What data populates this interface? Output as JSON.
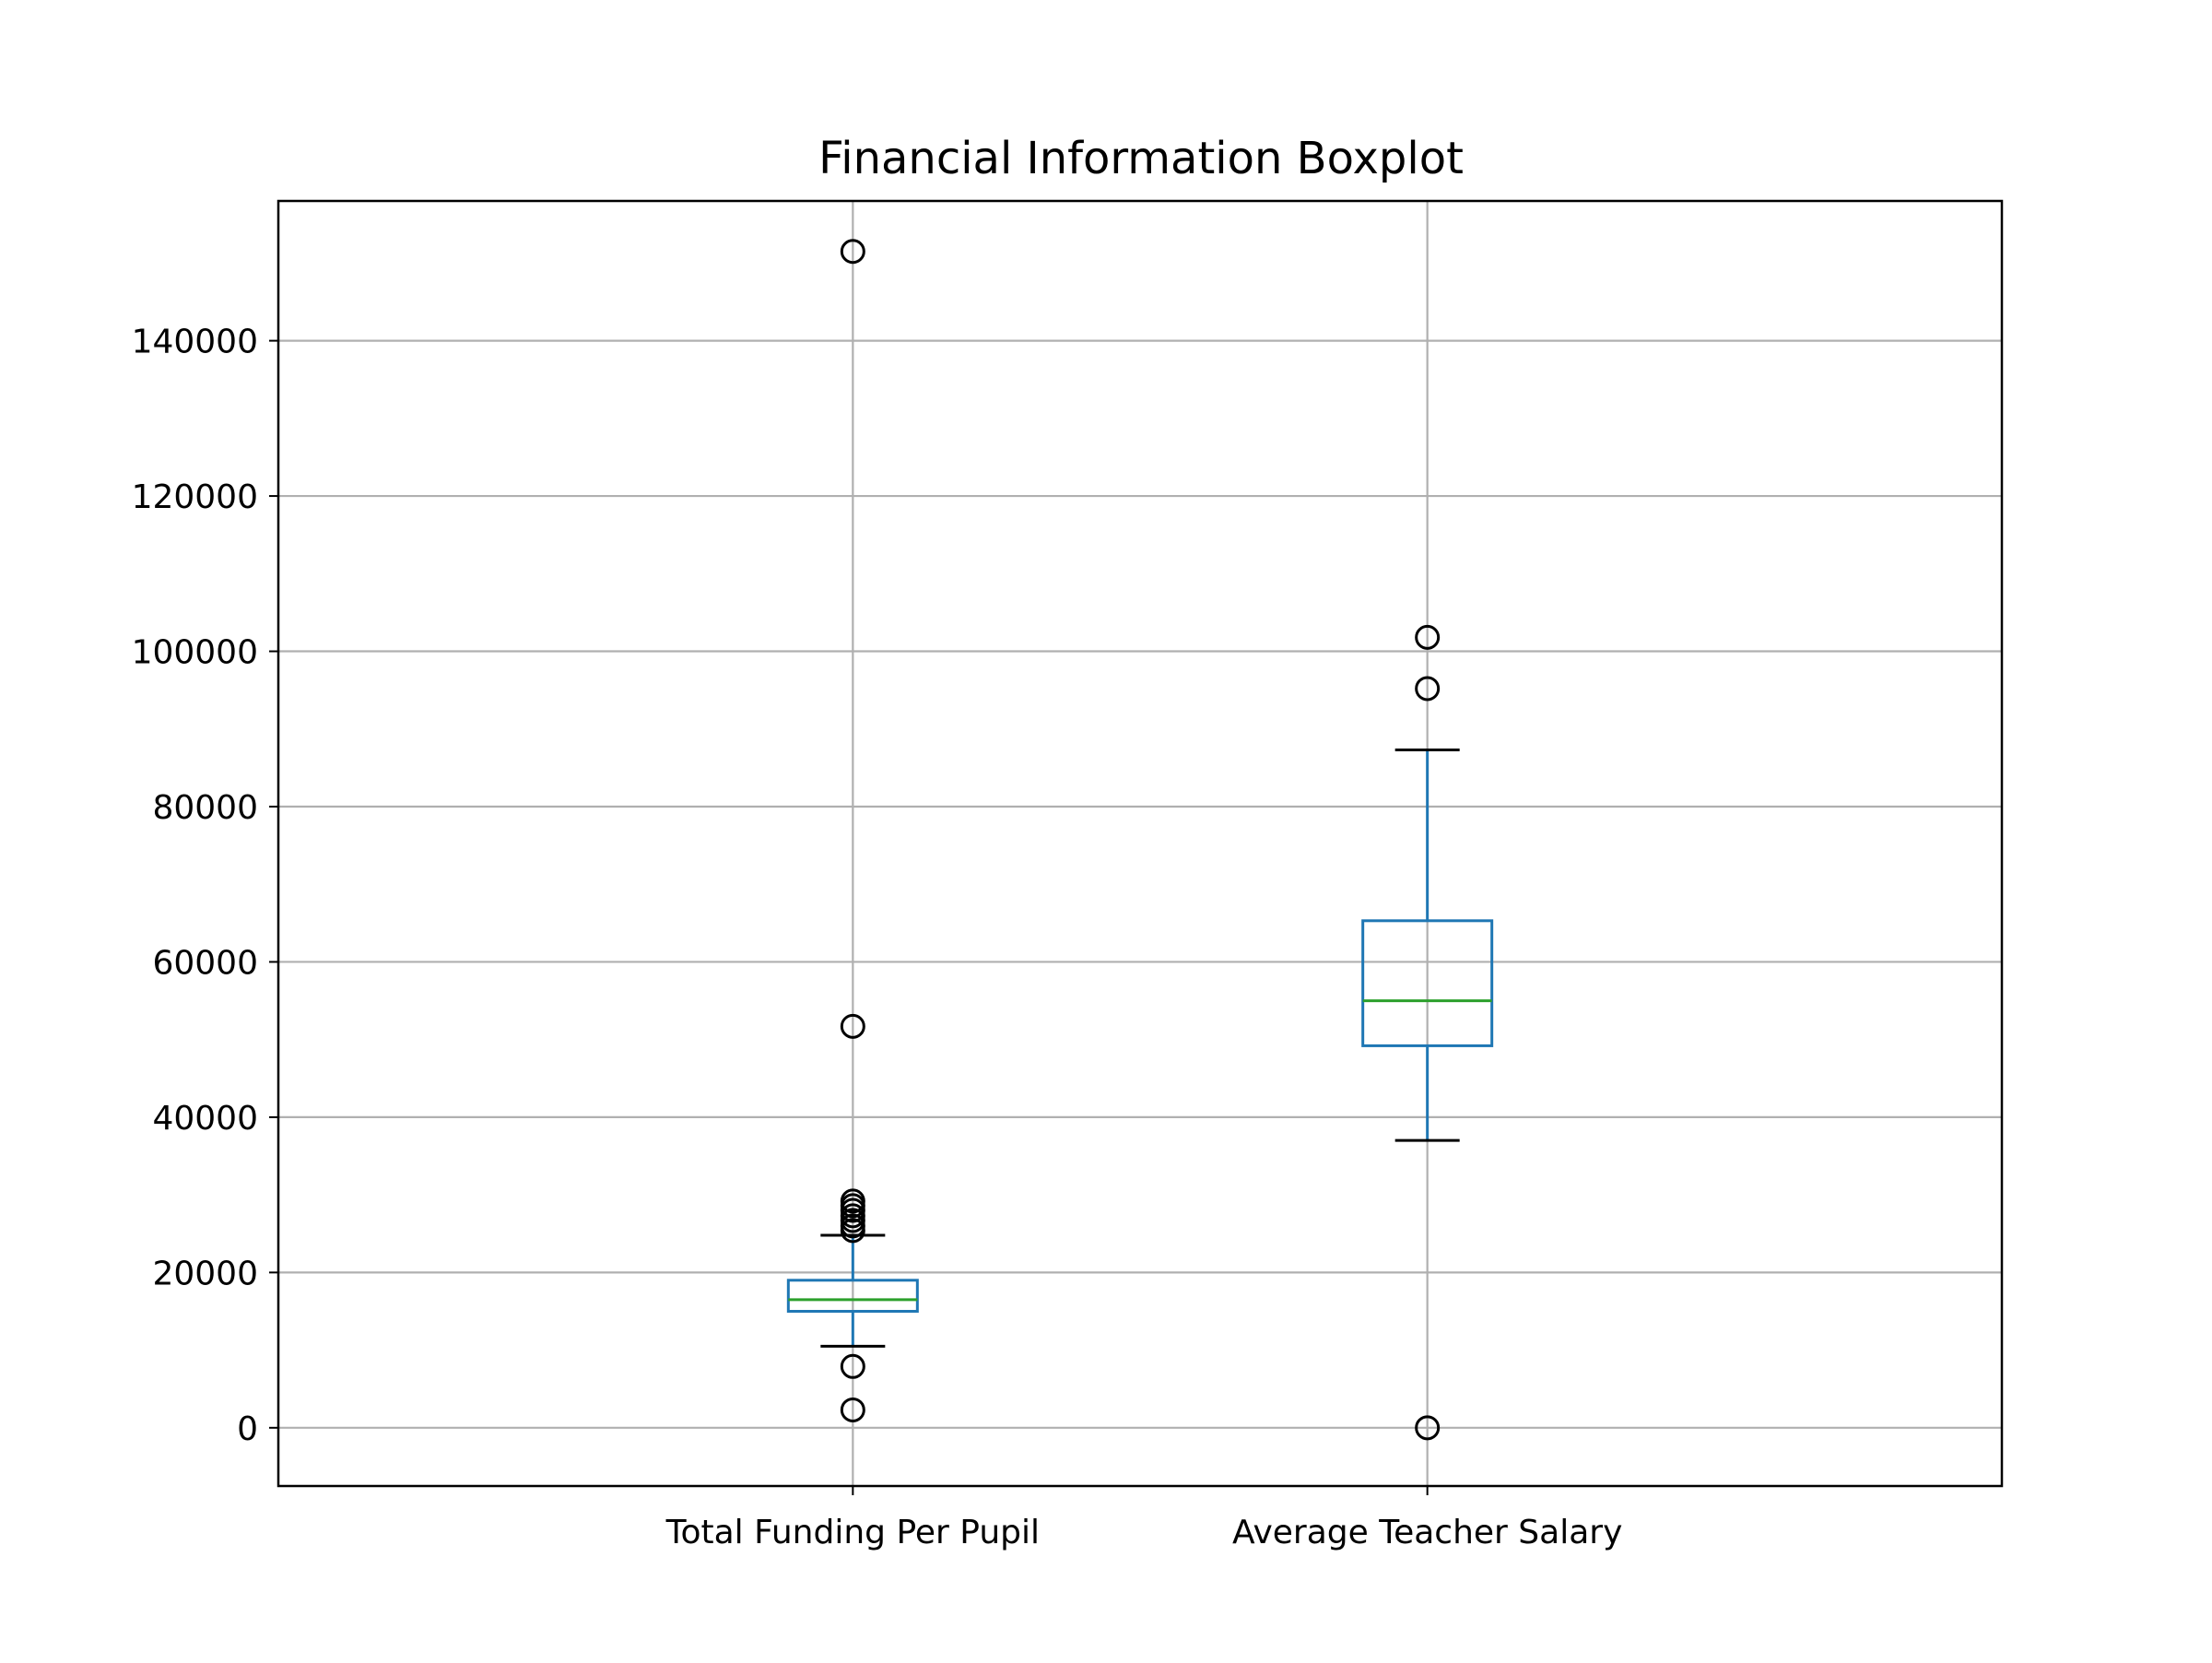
{
  "chart_data": {
    "type": "boxplot",
    "title": "Financial Information Boxplot",
    "xlabel": "",
    "ylabel": "",
    "ylim": [
      -7500,
      158000
    ],
    "yticks": [
      0,
      20000,
      40000,
      60000,
      80000,
      100000,
      120000,
      140000
    ],
    "ytick_labels": [
      "0",
      "20000",
      "40000",
      "60000",
      "80000",
      "100000",
      "120000",
      "140000"
    ],
    "grid": true,
    "categories": [
      "Total Funding Per Pupil",
      "Average Teacher Salary"
    ],
    "boxes": [
      {
        "category": "Total Funding Per Pupil",
        "whisker_low": 10500,
        "q1": 15000,
        "median": 16500,
        "q3": 19000,
        "whisker_high": 24800,
        "outliers": [
          151500,
          51700,
          29200,
          28600,
          28000,
          27300,
          26700,
          26000,
          25400,
          7900,
          2300
        ]
      },
      {
        "category": "Average Teacher Salary",
        "whisker_low": 37000,
        "q1": 49200,
        "median": 55000,
        "q3": 65300,
        "whisker_high": 87300,
        "outliers": [
          101800,
          95200,
          0
        ]
      }
    ],
    "colors": {
      "box": "#1f77b4",
      "median": "#2ca02c",
      "whisker_cap": "#000000",
      "grid": "#b0b0b0",
      "axes": "#000000"
    }
  }
}
